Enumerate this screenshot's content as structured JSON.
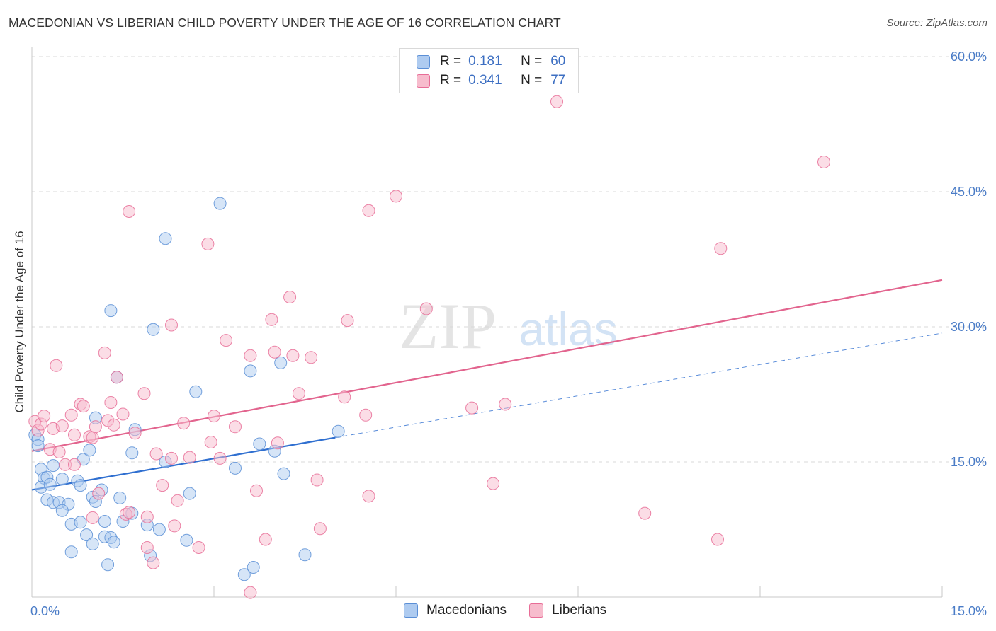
{
  "header": {
    "title": "MACEDONIAN VS LIBERIAN CHILD POVERTY UNDER THE AGE OF 16 CORRELATION CHART",
    "source": "Source: ZipAtlas.com"
  },
  "watermark": {
    "part1": "ZIP",
    "part2": "atlas"
  },
  "legend": {
    "r_label": "R =",
    "n_label": "N =",
    "series": [
      {
        "name": "Macedonians",
        "r": "0.181",
        "n": "60",
        "color": "#5b8fd6",
        "fill": "#aecbf0"
      },
      {
        "name": "Liberians",
        "r": "0.341",
        "n": "77",
        "color": "#e86d97",
        "fill": "#f7bccd"
      }
    ]
  },
  "colors": {
    "blue_line": "#2f6fd0",
    "pink_line": "#e2648e",
    "grid": "#d9d9d9",
    "tick_text": "#4a7cc7"
  },
  "chart_data": {
    "type": "scatter",
    "title": "MACEDONIAN VS LIBERIAN CHILD POVERTY UNDER THE AGE OF 16 CORRELATION CHART",
    "xlabel": "",
    "ylabel": "Child Poverty Under the Age of 16",
    "xlim": [
      0,
      15
    ],
    "ylim": [
      0,
      60
    ],
    "x_tick_labels": [
      {
        "value": 0,
        "label": "0.0%"
      },
      {
        "value": 15,
        "label": "15.0%"
      }
    ],
    "y_tick_labels": [
      {
        "value": 15,
        "label": "15.0%"
      },
      {
        "value": 30,
        "label": "30.0%"
      },
      {
        "value": 45,
        "label": "45.0%"
      },
      {
        "value": 60,
        "label": "60.0%"
      }
    ],
    "y_gridlines": [
      15,
      30,
      45,
      60
    ],
    "series": [
      {
        "name": "Macedonians",
        "points": [
          [
            0.05,
            18.0
          ],
          [
            0.1,
            17.5
          ],
          [
            0.1,
            16.8
          ],
          [
            0.15,
            14.2
          ],
          [
            0.2,
            13.2
          ],
          [
            0.25,
            13.3
          ],
          [
            0.15,
            12.2
          ],
          [
            0.3,
            12.5
          ],
          [
            0.5,
            13.1
          ],
          [
            0.75,
            12.9
          ],
          [
            0.8,
            12.4
          ],
          [
            0.25,
            10.8
          ],
          [
            0.35,
            10.5
          ],
          [
            0.45,
            10.5
          ],
          [
            0.6,
            10.3
          ],
          [
            0.5,
            9.6
          ],
          [
            0.65,
            8.1
          ],
          [
            0.8,
            8.3
          ],
          [
            0.9,
            6.9
          ],
          [
            1.0,
            11.1
          ],
          [
            1.05,
            10.6
          ],
          [
            1.15,
            11.9
          ],
          [
            1.0,
            5.9
          ],
          [
            1.2,
            6.7
          ],
          [
            1.3,
            6.6
          ],
          [
            1.35,
            6.1
          ],
          [
            0.65,
            5.0
          ],
          [
            1.25,
            3.6
          ],
          [
            1.45,
            11.0
          ],
          [
            1.5,
            8.4
          ],
          [
            1.65,
            9.3
          ],
          [
            1.9,
            8.0
          ],
          [
            2.1,
            7.5
          ],
          [
            1.95,
            4.6
          ],
          [
            2.55,
            6.3
          ],
          [
            0.85,
            15.3
          ],
          [
            0.95,
            16.3
          ],
          [
            1.05,
            19.9
          ],
          [
            1.3,
            31.8
          ],
          [
            1.4,
            24.4
          ],
          [
            1.65,
            16.0
          ],
          [
            1.7,
            18.6
          ],
          [
            2.0,
            29.7
          ],
          [
            2.2,
            15.0
          ],
          [
            2.2,
            39.8
          ],
          [
            2.6,
            11.5
          ],
          [
            2.7,
            22.8
          ],
          [
            3.1,
            43.7
          ],
          [
            3.35,
            14.3
          ],
          [
            3.6,
            25.1
          ],
          [
            3.75,
            17.0
          ],
          [
            4.0,
            16.2
          ],
          [
            4.15,
            13.7
          ],
          [
            4.1,
            26.0
          ],
          [
            4.5,
            4.7
          ],
          [
            5.05,
            18.4
          ],
          [
            3.5,
            2.5
          ],
          [
            3.65,
            3.3
          ],
          [
            1.2,
            8.4
          ],
          [
            0.35,
            14.6
          ]
        ]
      },
      {
        "name": "Liberians",
        "points": [
          [
            0.05,
            19.5
          ],
          [
            0.1,
            18.5
          ],
          [
            0.15,
            19.2
          ],
          [
            0.2,
            20.1
          ],
          [
            0.3,
            16.4
          ],
          [
            0.35,
            18.7
          ],
          [
            0.45,
            16.1
          ],
          [
            0.5,
            19.0
          ],
          [
            0.55,
            14.7
          ],
          [
            0.65,
            20.2
          ],
          [
            0.7,
            14.7
          ],
          [
            0.7,
            18.0
          ],
          [
            0.8,
            21.4
          ],
          [
            0.85,
            21.2
          ],
          [
            0.95,
            17.8
          ],
          [
            1.0,
            8.8
          ],
          [
            1.0,
            17.7
          ],
          [
            1.05,
            18.9
          ],
          [
            1.1,
            11.5
          ],
          [
            1.2,
            27.1
          ],
          [
            1.25,
            19.6
          ],
          [
            1.3,
            21.6
          ],
          [
            1.35,
            19.1
          ],
          [
            1.4,
            24.4
          ],
          [
            1.5,
            20.3
          ],
          [
            1.55,
            9.2
          ],
          [
            1.6,
            9.4
          ],
          [
            1.6,
            42.8
          ],
          [
            1.7,
            18.2
          ],
          [
            1.85,
            22.6
          ],
          [
            1.9,
            8.9
          ],
          [
            1.9,
            5.5
          ],
          [
            2.0,
            3.8
          ],
          [
            2.05,
            15.9
          ],
          [
            2.15,
            12.4
          ],
          [
            2.3,
            15.4
          ],
          [
            2.3,
            30.2
          ],
          [
            2.35,
            7.9
          ],
          [
            2.4,
            10.7
          ],
          [
            2.5,
            19.3
          ],
          [
            2.6,
            15.5
          ],
          [
            2.75,
            5.5
          ],
          [
            2.9,
            39.2
          ],
          [
            2.95,
            17.2
          ],
          [
            3.0,
            20.1
          ],
          [
            3.1,
            15.4
          ],
          [
            3.2,
            28.5
          ],
          [
            3.35,
            18.9
          ],
          [
            3.6,
            26.8
          ],
          [
            3.7,
            11.8
          ],
          [
            3.85,
            6.4
          ],
          [
            3.95,
            30.8
          ],
          [
            4.0,
            27.2
          ],
          [
            4.05,
            17.1
          ],
          [
            4.25,
            33.3
          ],
          [
            4.3,
            26.8
          ],
          [
            4.4,
            22.6
          ],
          [
            4.6,
            26.6
          ],
          [
            4.7,
            13.0
          ],
          [
            4.75,
            7.6
          ],
          [
            5.15,
            22.2
          ],
          [
            5.2,
            30.7
          ],
          [
            5.5,
            20.2
          ],
          [
            5.55,
            42.9
          ],
          [
            5.55,
            11.2
          ],
          [
            6.0,
            44.5
          ],
          [
            6.5,
            32.0
          ],
          [
            7.25,
            21.0
          ],
          [
            7.6,
            12.6
          ],
          [
            7.8,
            21.4
          ],
          [
            8.65,
            55.0
          ],
          [
            10.1,
            9.3
          ],
          [
            11.3,
            6.4
          ],
          [
            11.35,
            38.7
          ],
          [
            13.05,
            48.3
          ],
          [
            3.6,
            0.5
          ],
          [
            0.4,
            25.7
          ]
        ]
      }
    ],
    "trend_lines": [
      {
        "series": "Macedonians",
        "style": "solid",
        "x": [
          0,
          5.0
        ],
        "y": [
          11.9,
          17.7
        ]
      },
      {
        "series": "Macedonians",
        "style": "dashed",
        "x": [
          5.0,
          15.0
        ],
        "y": [
          17.7,
          29.3
        ]
      },
      {
        "series": "Liberians",
        "style": "solid",
        "x": [
          0,
          15.0
        ],
        "y": [
          16.2,
          35.2
        ]
      }
    ]
  }
}
